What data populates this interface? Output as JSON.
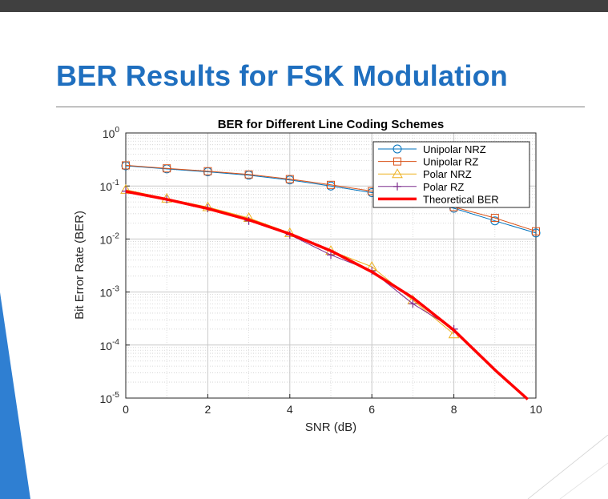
{
  "slide": {
    "title": "BER Results for FSK Modulation"
  },
  "colors": {
    "title": "#1f6fbf",
    "accent": "#2f7fd2",
    "top_bar": "#404040"
  },
  "chart_data": {
    "type": "line",
    "title": "BER for Different Line Coding Schemes",
    "xlabel": "SNR (dB)",
    "ylabel": "Bit Error Rate (BER)",
    "xlim": [
      0,
      10
    ],
    "ylim": [
      1e-05,
      1
    ],
    "yscale": "log",
    "grid": true,
    "minor_grid": true,
    "legend_position": "top-right",
    "x_ticks": [
      0,
      2,
      4,
      6,
      8,
      10
    ],
    "y_tick_exponents": [
      0,
      -1,
      -2,
      -3,
      -4,
      -5
    ],
    "y_tick_base": "10",
    "series": [
      {
        "name": "Unipolar NRZ",
        "color": "#0072bd",
        "marker": "circle",
        "line_width": 1,
        "x": [
          0,
          1,
          2,
          3,
          4,
          5,
          6,
          7,
          8,
          9,
          10
        ],
        "y": [
          0.24,
          0.21,
          0.185,
          0.16,
          0.13,
          0.1,
          0.075,
          0.055,
          0.038,
          0.022,
          0.013
        ]
      },
      {
        "name": "Unipolar RZ",
        "color": "#d95319",
        "marker": "square",
        "line_width": 1,
        "x": [
          0,
          1,
          2,
          3,
          4,
          5,
          6,
          7,
          8,
          9,
          10
        ],
        "y": [
          0.245,
          0.215,
          0.19,
          0.165,
          0.135,
          0.105,
          0.08,
          0.06,
          0.04,
          0.025,
          0.014
        ]
      },
      {
        "name": "Polar NRZ",
        "color": "#edb120",
        "marker": "triangle",
        "line_width": 1,
        "x": [
          0,
          1,
          2,
          3,
          4,
          5,
          6,
          7,
          8
        ],
        "y": [
          0.085,
          0.058,
          0.04,
          0.025,
          0.013,
          0.006,
          0.003,
          0.0007,
          0.00016
        ]
      },
      {
        "name": "Polar RZ",
        "color": "#7e2f8e",
        "marker": "plus",
        "line_width": 1,
        "x": [
          0,
          1,
          2,
          3,
          4,
          5,
          6,
          7,
          8
        ],
        "y": [
          0.08,
          0.056,
          0.038,
          0.022,
          0.012,
          0.005,
          0.0025,
          0.0006,
          0.0002
        ]
      },
      {
        "name": "Theoretical BER",
        "color": "#ff0000",
        "marker": "none",
        "line_width": 3.5,
        "x": [
          0,
          1,
          2,
          3,
          4,
          5,
          6,
          7,
          8,
          9,
          9.8
        ],
        "y": [
          0.079,
          0.056,
          0.0375,
          0.023,
          0.0125,
          0.006,
          0.0024,
          0.00078,
          0.00019,
          3.4e-05,
          9.5e-06
        ]
      }
    ]
  }
}
